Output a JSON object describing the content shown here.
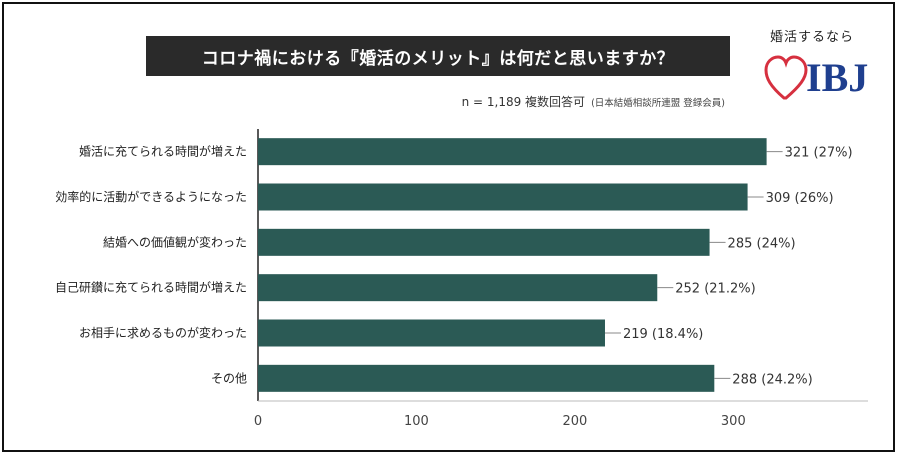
{
  "header": {
    "title": "コロナ禍における『婚活のメリット』は何だと思いますか？",
    "subtitle": "n = 1,189 複数回答可",
    "subtitle_note": "(日本結婚相談所連盟 登録会員)"
  },
  "brand": {
    "tagline": "婚活するなら",
    "logo_text": "IBJ",
    "logo_color": "#1f3f8f",
    "heart_color": "#d6303f"
  },
  "chart_data": {
    "type": "bar",
    "orientation": "horizontal",
    "categories": [
      "婚活に充てられる時間が増えた",
      "効率的に活動ができるようになった",
      "結婚への価値観が変わった",
      "自己研鑚に充てられる時間が増えた",
      "お相手に求めるものが変わった",
      "その他"
    ],
    "values": [
      321,
      309,
      285,
      252,
      219,
      288
    ],
    "value_labels": [
      "321 (27%)",
      "309 (26%)",
      "285 (24%)",
      "252 (21.2%)",
      "219 (18.4%)",
      "288 (24.2%)"
    ],
    "xticks": [
      0,
      100,
      200,
      300
    ],
    "xlim": [
      0,
      385
    ],
    "bar_color": "#2b5a55",
    "grid": false
  }
}
